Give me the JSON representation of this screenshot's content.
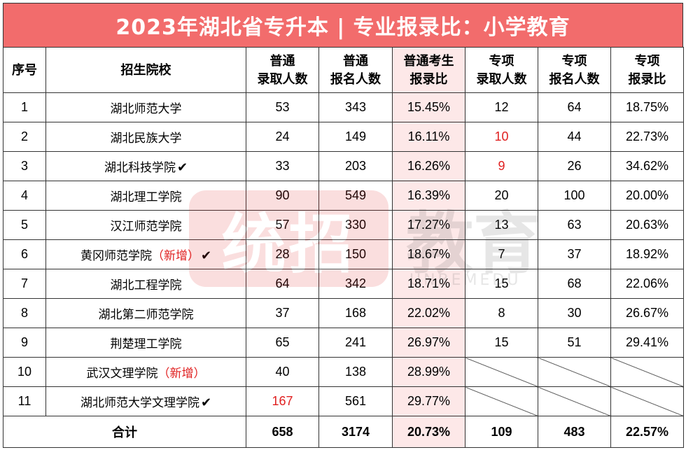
{
  "title": "2023年湖北省专升本 | 专业报录比：小学教育",
  "headers": {
    "index": "序号",
    "school": "招生院校",
    "reg_admit": [
      "普通",
      "录取人数"
    ],
    "reg_apply": [
      "普通",
      "报名人数"
    ],
    "reg_ratio": [
      "普通考生",
      "报录比"
    ],
    "spec_admit": [
      "专项",
      "录取人数"
    ],
    "spec_apply": [
      "专项",
      "报名人数"
    ],
    "spec_ratio": [
      "专项",
      "报录比"
    ]
  },
  "rows": [
    {
      "no": "1",
      "school": "湖北师范大学",
      "note": "",
      "check": "",
      "reg_admit": "53",
      "reg_apply": "343",
      "reg_ratio": "15.45%",
      "spec_admit": "12",
      "spec_apply": "64",
      "spec_ratio": "18.75%"
    },
    {
      "no": "2",
      "school": "湖北民族大学",
      "note": "",
      "check": "",
      "reg_admit": "24",
      "reg_apply": "149",
      "reg_ratio": "16.11%",
      "spec_admit": "10",
      "spec_apply": "44",
      "spec_ratio": "22.73%"
    },
    {
      "no": "3",
      "school": "湖北科技学院",
      "note": "",
      "check": "✔",
      "reg_admit": "33",
      "reg_apply": "203",
      "reg_ratio": "16.26%",
      "spec_admit": "9",
      "spec_apply": "26",
      "spec_ratio": "34.62%"
    },
    {
      "no": "4",
      "school": "湖北理工学院",
      "note": "",
      "check": "",
      "reg_admit": "90",
      "reg_apply": "549",
      "reg_ratio": "16.39%",
      "spec_admit": "20",
      "spec_apply": "100",
      "spec_ratio": "20.00%"
    },
    {
      "no": "5",
      "school": "汉江师范学院",
      "note": "",
      "check": "",
      "reg_admit": "57",
      "reg_apply": "330",
      "reg_ratio": "17.27%",
      "spec_admit": "13",
      "spec_apply": "63",
      "spec_ratio": "20.63%"
    },
    {
      "no": "6",
      "school": "黄冈师范学院",
      "note": "（新增）",
      "check": "✔",
      "reg_admit": "28",
      "reg_apply": "150",
      "reg_ratio": "18.67%",
      "spec_admit": "7",
      "spec_apply": "37",
      "spec_ratio": "18.92%"
    },
    {
      "no": "7",
      "school": "湖北工程学院",
      "note": "",
      "check": "",
      "reg_admit": "64",
      "reg_apply": "342",
      "reg_ratio": "18.71%",
      "spec_admit": "15",
      "spec_apply": "68",
      "spec_ratio": "22.06%"
    },
    {
      "no": "8",
      "school": "湖北第二师范学院",
      "note": "",
      "check": "",
      "reg_admit": "37",
      "reg_apply": "168",
      "reg_ratio": "22.02%",
      "spec_admit": "8",
      "spec_apply": "30",
      "spec_ratio": "26.67%"
    },
    {
      "no": "9",
      "school": "荆楚理工学院",
      "note": "",
      "check": "",
      "reg_admit": "65",
      "reg_apply": "241",
      "reg_ratio": "26.97%",
      "spec_admit": "15",
      "spec_apply": "51",
      "spec_ratio": "29.41%"
    },
    {
      "no": "10",
      "school": "武汉文理学院",
      "note": "（新增）",
      "check": "",
      "reg_admit": "40",
      "reg_apply": "138",
      "reg_ratio": "28.99%",
      "spec_admit": "",
      "spec_apply": "",
      "spec_ratio": ""
    },
    {
      "no": "11",
      "school": "湖北师范大学文理学院",
      "note": "",
      "check": "✔",
      "reg_admit": "167",
      "reg_apply": "561",
      "reg_ratio": "29.77%",
      "spec_admit": "",
      "spec_apply": "",
      "spec_ratio": ""
    }
  ],
  "total": {
    "label": "合计",
    "reg_admit": "658",
    "reg_apply": "3174",
    "reg_ratio": "20.73%",
    "spec_admit": "109",
    "spec_apply": "483",
    "spec_ratio": "22.57%"
  },
  "watermark": {
    "logo": "统招",
    "brand": "教育",
    "sub": "UNBEMEDU"
  },
  "colors": {
    "title_bg": "#f26c6c",
    "highlight_col": "#fde8e8",
    "emphasis_red": "#e02020"
  }
}
